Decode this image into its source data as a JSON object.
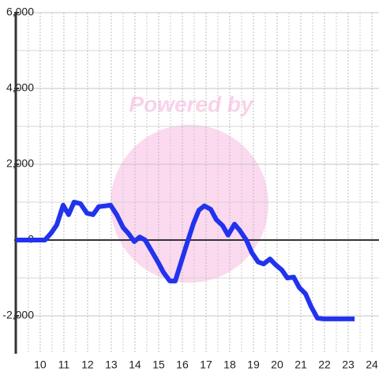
{
  "chart_data": {
    "type": "line",
    "watermark": "Powered by",
    "x": [
      8.97,
      10.2,
      10.47,
      10.7,
      10.97,
      11.2,
      11.43,
      11.7,
      11.97,
      12.23,
      12.47,
      12.73,
      12.97,
      13.23,
      13.5,
      13.73,
      13.97,
      14.2,
      14.43,
      14.7,
      14.97,
      15.2,
      15.47,
      15.7,
      15.97,
      16.2,
      16.47,
      16.7,
      16.93,
      17.2,
      17.43,
      17.7,
      17.93,
      18.2,
      18.43,
      18.7,
      18.93,
      19.2,
      19.43,
      19.7,
      19.93,
      20.2,
      20.43,
      20.7,
      20.93,
      21.2,
      21.43,
      21.7,
      21.93,
      23.27
    ],
    "series": [
      {
        "color": "#2233ee",
        "values": [
          0,
          0,
          190,
          400,
          920,
          670,
          1000,
          960,
          710,
          670,
          880,
          900,
          920,
          670,
          330,
          170,
          -40,
          80,
          0,
          -290,
          -580,
          -850,
          -1080,
          -1080,
          -540,
          -80,
          440,
          790,
          900,
          810,
          540,
          380,
          130,
          420,
          250,
          0,
          -330,
          -580,
          -630,
          -500,
          -650,
          -790,
          -1000,
          -980,
          -1250,
          -1420,
          -1750,
          -2060,
          -2080,
          -2080
        ]
      }
    ],
    "xlim": [
      8.97,
      24.3
    ],
    "xticks": [
      10,
      11,
      12,
      13,
      14,
      15,
      16,
      17,
      18,
      19,
      20,
      21,
      22,
      23,
      24
    ],
    "xminor": [
      9.5,
      10.5,
      11.5,
      12.5,
      13.5,
      14.5,
      15.5,
      16.5,
      17.5,
      18.5,
      19.5,
      20.5,
      21.5,
      22.5,
      23.5
    ],
    "ylim": [
      -3000,
      6000
    ],
    "yticks": [
      {
        "value": -2000,
        "label": "-2,000"
      },
      0,
      {
        "value": 2000,
        "label": "2,000"
      },
      {
        "value": 4000,
        "label": "4,000"
      },
      {
        "value": 6000,
        "label": "6,000"
      }
    ],
    "yminor": [
      -1000,
      1000,
      3000,
      5000
    ],
    "grid": true
  }
}
